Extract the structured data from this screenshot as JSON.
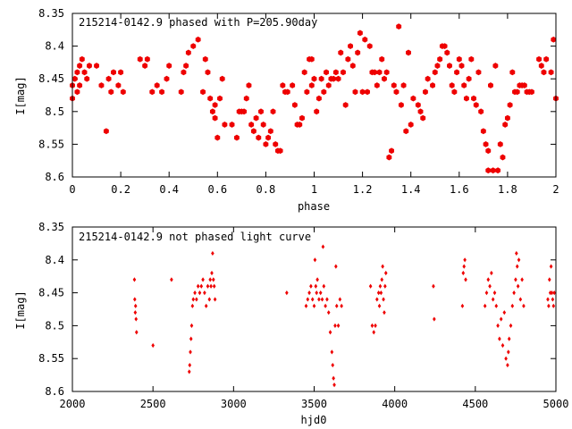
{
  "colors": {
    "marker": "#ee0000",
    "axis": "#000000",
    "background": "#ffffff"
  },
  "chart_data": [
    {
      "type": "scatter",
      "title": "215214-0142.9 phased with P=205.90day",
      "xlabel": "phase",
      "ylabel": "I[mag]",
      "xlim": [
        0,
        2
      ],
      "ylim": [
        8.35,
        8.6
      ],
      "y_inverted": true,
      "xticks": [
        0,
        0.2,
        0.4,
        0.6,
        0.8,
        1,
        1.2,
        1.4,
        1.6,
        1.8,
        2
      ],
      "xtick_labels": [
        "0",
        "0.2",
        "0.4",
        "0.6",
        "0.8",
        "1",
        "1.2",
        "1.4",
        "1.6",
        "1.8",
        "2"
      ],
      "yticks": [
        8.35,
        8.4,
        8.45,
        8.5,
        8.55,
        8.6
      ],
      "ytick_labels": [
        "8.35",
        "8.4",
        "8.45",
        "8.5",
        "8.55",
        "8.6"
      ],
      "grid": false,
      "marker": "hexagon",
      "points": [
        [
          0.0,
          8.46
        ],
        [
          0.0,
          8.48
        ],
        [
          0.01,
          8.45
        ],
        [
          0.02,
          8.44
        ],
        [
          0.02,
          8.47
        ],
        [
          0.03,
          8.43
        ],
        [
          0.03,
          8.46
        ],
        [
          0.04,
          8.42
        ],
        [
          0.05,
          8.44
        ],
        [
          0.06,
          8.45
        ],
        [
          0.07,
          8.43
        ],
        [
          0.1,
          8.43
        ],
        [
          0.12,
          8.46
        ],
        [
          0.14,
          8.53
        ],
        [
          0.15,
          8.45
        ],
        [
          0.16,
          8.47
        ],
        [
          0.17,
          8.44
        ],
        [
          0.19,
          8.46
        ],
        [
          0.2,
          8.44
        ],
        [
          0.21,
          8.47
        ],
        [
          0.28,
          8.42
        ],
        [
          0.3,
          8.43
        ],
        [
          0.31,
          8.42
        ],
        [
          0.33,
          8.47
        ],
        [
          0.35,
          8.46
        ],
        [
          0.37,
          8.47
        ],
        [
          0.39,
          8.45
        ],
        [
          0.4,
          8.43
        ],
        [
          0.45,
          8.47
        ],
        [
          0.46,
          8.44
        ],
        [
          0.47,
          8.43
        ],
        [
          0.48,
          8.41
        ],
        [
          0.5,
          8.4
        ],
        [
          0.52,
          8.39
        ],
        [
          0.54,
          8.47
        ],
        [
          0.55,
          8.42
        ],
        [
          0.56,
          8.44
        ],
        [
          0.57,
          8.48
        ],
        [
          0.58,
          8.5
        ],
        [
          0.59,
          8.51
        ],
        [
          0.59,
          8.49
        ],
        [
          0.6,
          8.54
        ],
        [
          0.61,
          8.48
        ],
        [
          0.62,
          8.45
        ],
        [
          0.63,
          8.52
        ],
        [
          0.66,
          8.52
        ],
        [
          0.68,
          8.54
        ],
        [
          0.69,
          8.5
        ],
        [
          0.7,
          8.5
        ],
        [
          0.71,
          8.5
        ],
        [
          0.72,
          8.48
        ],
        [
          0.73,
          8.46
        ],
        [
          0.74,
          8.52
        ],
        [
          0.75,
          8.53
        ],
        [
          0.76,
          8.51
        ],
        [
          0.77,
          8.54
        ],
        [
          0.78,
          8.5
        ],
        [
          0.79,
          8.52
        ],
        [
          0.8,
          8.55
        ],
        [
          0.81,
          8.54
        ],
        [
          0.82,
          8.53
        ],
        [
          0.83,
          8.5
        ],
        [
          0.84,
          8.55
        ],
        [
          0.85,
          8.56
        ],
        [
          0.86,
          8.56
        ],
        [
          0.87,
          8.46
        ],
        [
          0.88,
          8.47
        ],
        [
          0.89,
          8.47
        ],
        [
          0.91,
          8.46
        ],
        [
          0.92,
          8.49
        ],
        [
          0.93,
          8.52
        ],
        [
          0.94,
          8.52
        ],
        [
          0.95,
          8.51
        ],
        [
          0.96,
          8.44
        ],
        [
          0.97,
          8.47
        ],
        [
          0.98,
          8.42
        ],
        [
          0.99,
          8.46
        ],
        [
          0.99,
          8.42
        ],
        [
          1.0,
          8.45
        ],
        [
          1.01,
          8.5
        ],
        [
          1.02,
          8.48
        ],
        [
          1.03,
          8.45
        ],
        [
          1.04,
          8.47
        ],
        [
          1.05,
          8.44
        ],
        [
          1.06,
          8.46
        ],
        [
          1.07,
          8.45
        ],
        [
          1.08,
          8.45
        ],
        [
          1.09,
          8.44
        ],
        [
          1.1,
          8.45
        ],
        [
          1.11,
          8.41
        ],
        [
          1.12,
          8.44
        ],
        [
          1.13,
          8.49
        ],
        [
          1.14,
          8.42
        ],
        [
          1.15,
          8.4
        ],
        [
          1.16,
          8.43
        ],
        [
          1.17,
          8.47
        ],
        [
          1.18,
          8.41
        ],
        [
          1.19,
          8.38
        ],
        [
          1.2,
          8.47
        ],
        [
          1.21,
          8.39
        ],
        [
          1.22,
          8.47
        ],
        [
          1.23,
          8.4
        ],
        [
          1.24,
          8.44
        ],
        [
          1.25,
          8.44
        ],
        [
          1.26,
          8.46
        ],
        [
          1.27,
          8.44
        ],
        [
          1.28,
          8.42
        ],
        [
          1.29,
          8.45
        ],
        [
          1.3,
          8.44
        ],
        [
          1.31,
          8.57
        ],
        [
          1.32,
          8.56
        ],
        [
          1.33,
          8.46
        ],
        [
          1.34,
          8.47
        ],
        [
          1.35,
          8.37
        ],
        [
          1.36,
          8.49
        ],
        [
          1.37,
          8.46
        ],
        [
          1.38,
          8.53
        ],
        [
          1.39,
          8.41
        ],
        [
          1.4,
          8.52
        ],
        [
          1.41,
          8.48
        ],
        [
          1.43,
          8.49
        ],
        [
          1.44,
          8.5
        ],
        [
          1.45,
          8.51
        ],
        [
          1.46,
          8.47
        ],
        [
          1.47,
          8.45
        ],
        [
          1.49,
          8.46
        ],
        [
          1.5,
          8.44
        ],
        [
          1.51,
          8.43
        ],
        [
          1.52,
          8.42
        ],
        [
          1.53,
          8.4
        ],
        [
          1.54,
          8.4
        ],
        [
          1.55,
          8.41
        ],
        [
          1.56,
          8.43
        ],
        [
          1.57,
          8.46
        ],
        [
          1.58,
          8.47
        ],
        [
          1.59,
          8.44
        ],
        [
          1.6,
          8.42
        ],
        [
          1.61,
          8.43
        ],
        [
          1.62,
          8.46
        ],
        [
          1.63,
          8.48
        ],
        [
          1.64,
          8.45
        ],
        [
          1.65,
          8.42
        ],
        [
          1.66,
          8.48
        ],
        [
          1.67,
          8.49
        ],
        [
          1.68,
          8.44
        ],
        [
          1.69,
          8.5
        ],
        [
          1.7,
          8.53
        ],
        [
          1.71,
          8.55
        ],
        [
          1.72,
          8.56
        ],
        [
          1.72,
          8.59
        ],
        [
          1.73,
          8.46
        ],
        [
          1.74,
          8.59
        ],
        [
          1.75,
          8.43
        ],
        [
          1.76,
          8.59
        ],
        [
          1.77,
          8.55
        ],
        [
          1.78,
          8.57
        ],
        [
          1.79,
          8.52
        ],
        [
          1.8,
          8.51
        ],
        [
          1.81,
          8.49
        ],
        [
          1.82,
          8.44
        ],
        [
          1.83,
          8.47
        ],
        [
          1.84,
          8.47
        ],
        [
          1.85,
          8.46
        ],
        [
          1.86,
          8.46
        ],
        [
          1.87,
          8.46
        ],
        [
          1.88,
          8.47
        ],
        [
          1.89,
          8.47
        ],
        [
          1.9,
          8.47
        ],
        [
          1.93,
          8.42
        ],
        [
          1.94,
          8.43
        ],
        [
          1.95,
          8.44
        ],
        [
          1.96,
          8.42
        ],
        [
          1.98,
          8.44
        ],
        [
          1.99,
          8.39
        ],
        [
          2.0,
          8.48
        ]
      ]
    },
    {
      "type": "scatter",
      "title": "215214-0142.9 not phased light curve",
      "xlabel": "hjd0",
      "ylabel": "I[mag]",
      "xlim": [
        2000,
        5000
      ],
      "ylim": [
        8.35,
        8.6
      ],
      "y_inverted": true,
      "xticks": [
        2000,
        2500,
        3000,
        3500,
        4000,
        4500,
        5000
      ],
      "xtick_labels": [
        "2000",
        "2500",
        "3000",
        "3500",
        "4000",
        "4500",
        "5000"
      ],
      "yticks": [
        8.35,
        8.4,
        8.45,
        8.5,
        8.55,
        8.6
      ],
      "ytick_labels": [
        "8.35",
        "8.4",
        "8.45",
        "8.5",
        "8.55",
        "8.6"
      ],
      "grid": false,
      "marker": "diamond",
      "points": [
        [
          2385,
          8.43
        ],
        [
          2387,
          8.46
        ],
        [
          2390,
          8.48
        ],
        [
          2392,
          8.47
        ],
        [
          2395,
          8.49
        ],
        [
          2398,
          8.51
        ],
        [
          2500,
          8.53
        ],
        [
          2615,
          8.43
        ],
        [
          2725,
          8.57
        ],
        [
          2728,
          8.56
        ],
        [
          2732,
          8.54
        ],
        [
          2736,
          8.52
        ],
        [
          2740,
          8.5
        ],
        [
          2745,
          8.47
        ],
        [
          2750,
          8.46
        ],
        [
          2760,
          8.45
        ],
        [
          2770,
          8.46
        ],
        [
          2780,
          8.44
        ],
        [
          2790,
          8.45
        ],
        [
          2800,
          8.44
        ],
        [
          2810,
          8.43
        ],
        [
          2820,
          8.45
        ],
        [
          2830,
          8.47
        ],
        [
          2840,
          8.44
        ],
        [
          2850,
          8.46
        ],
        [
          2855,
          8.43
        ],
        [
          2860,
          8.44
        ],
        [
          2865,
          8.42
        ],
        [
          2870,
          8.39
        ],
        [
          2875,
          8.43
        ],
        [
          2880,
          8.44
        ],
        [
          2885,
          8.46
        ],
        [
          3330,
          8.45
        ],
        [
          3450,
          8.47
        ],
        [
          3460,
          8.46
        ],
        [
          3470,
          8.45
        ],
        [
          3480,
          8.44
        ],
        [
          3490,
          8.46
        ],
        [
          3500,
          8.47
        ],
        [
          3505,
          8.4
        ],
        [
          3510,
          8.44
        ],
        [
          3515,
          8.45
        ],
        [
          3520,
          8.43
        ],
        [
          3530,
          8.46
        ],
        [
          3540,
          8.45
        ],
        [
          3550,
          8.46
        ],
        [
          3555,
          8.38
        ],
        [
          3560,
          8.44
        ],
        [
          3570,
          8.47
        ],
        [
          3580,
          8.46
        ],
        [
          3590,
          8.48
        ],
        [
          3600,
          8.51
        ],
        [
          3610,
          8.54
        ],
        [
          3615,
          8.56
        ],
        [
          3620,
          8.58
        ],
        [
          3625,
          8.59
        ],
        [
          3630,
          8.5
        ],
        [
          3635,
          8.41
        ],
        [
          3640,
          8.47
        ],
        [
          3650,
          8.5
        ],
        [
          3660,
          8.46
        ],
        [
          3670,
          8.47
        ],
        [
          3850,
          8.44
        ],
        [
          3860,
          8.5
        ],
        [
          3870,
          8.51
        ],
        [
          3880,
          8.5
        ],
        [
          3890,
          8.46
        ],
        [
          3900,
          8.45
        ],
        [
          3905,
          8.47
        ],
        [
          3910,
          8.44
        ],
        [
          3915,
          8.45
        ],
        [
          3920,
          8.43
        ],
        [
          3925,
          8.41
        ],
        [
          3930,
          8.46
        ],
        [
          3935,
          8.48
        ],
        [
          3940,
          8.44
        ],
        [
          3945,
          8.42
        ],
        [
          4240,
          8.44
        ],
        [
          4245,
          8.49
        ],
        [
          4420,
          8.47
        ],
        [
          4425,
          8.42
        ],
        [
          4430,
          8.41
        ],
        [
          4435,
          8.4
        ],
        [
          4440,
          8.43
        ],
        [
          4560,
          8.47
        ],
        [
          4570,
          8.45
        ],
        [
          4580,
          8.43
        ],
        [
          4590,
          8.44
        ],
        [
          4600,
          8.42
        ],
        [
          4610,
          8.46
        ],
        [
          4620,
          8.45
        ],
        [
          4630,
          8.47
        ],
        [
          4640,
          8.5
        ],
        [
          4650,
          8.52
        ],
        [
          4660,
          8.49
        ],
        [
          4670,
          8.53
        ],
        [
          4680,
          8.48
        ],
        [
          4690,
          8.55
        ],
        [
          4700,
          8.56
        ],
        [
          4705,
          8.54
        ],
        [
          4710,
          8.52
        ],
        [
          4720,
          8.5
        ],
        [
          4730,
          8.47
        ],
        [
          4740,
          8.45
        ],
        [
          4750,
          8.43
        ],
        [
          4755,
          8.39
        ],
        [
          4760,
          8.41
        ],
        [
          4765,
          8.44
        ],
        [
          4770,
          8.4
        ],
        [
          4780,
          8.46
        ],
        [
          4790,
          8.43
        ],
        [
          4800,
          8.47
        ],
        [
          4950,
          8.46
        ],
        [
          4955,
          8.47
        ],
        [
          4960,
          8.43
        ],
        [
          4965,
          8.45
        ],
        [
          4970,
          8.41
        ],
        [
          4975,
          8.45
        ],
        [
          4980,
          8.46
        ],
        [
          4985,
          8.47
        ],
        [
          4990,
          8.45
        ]
      ]
    }
  ]
}
